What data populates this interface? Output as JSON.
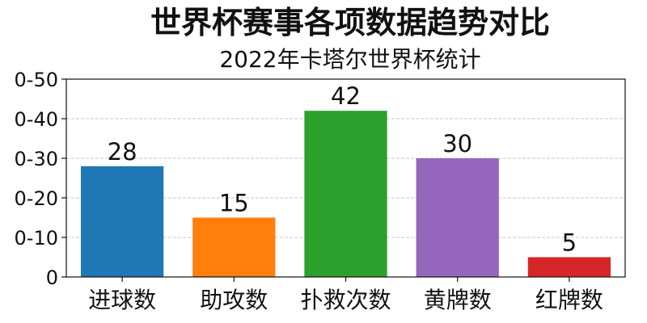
{
  "chart_data": {
    "type": "bar",
    "title": "世界杯赛事各项数据趋势对比",
    "subtitle": "2022年卡塔尔世界杯统计",
    "xlabel": "",
    "ylabel": "",
    "categories": [
      "进球数",
      "助攻数",
      "扑救次数",
      "黄牌数",
      "红牌数"
    ],
    "values": [
      28,
      15,
      42,
      30,
      5
    ],
    "colors": [
      "#1f77b4",
      "#ff7f0e",
      "#2ca02c",
      "#9467bd",
      "#d62728"
    ],
    "ylim": [
      0,
      50
    ],
    "y_ticks": [
      0,
      10,
      20,
      30,
      40,
      50
    ],
    "y_tick_labels": [
      "0",
      "0-10",
      "0-20",
      "0-30",
      "0-40",
      "0-50"
    ],
    "grid": "y",
    "legend": "none",
    "data_labels": true
  }
}
